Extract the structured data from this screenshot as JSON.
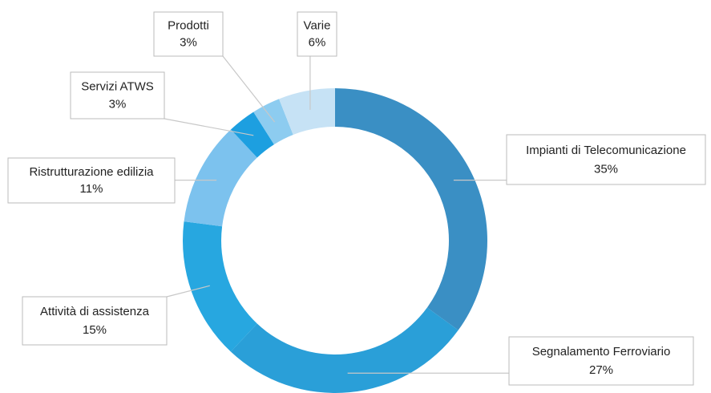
{
  "chart_data": {
    "type": "donut",
    "categories": [
      "Impianti di Telecomunicazione",
      "Segnalamento Ferroviario",
      "Attività di assistenza",
      "Ristrutturazione edilizia",
      "Servizi ATWS",
      "Prodotti",
      "Varie"
    ],
    "values": [
      35,
      27,
      15,
      11,
      3,
      3,
      6
    ],
    "value_labels": [
      "35%",
      "27%",
      "15%",
      "11%",
      "3%",
      "3%",
      "6%"
    ],
    "colors": [
      "#3a8fc4",
      "#2a9fd8",
      "#27a7e0",
      "#7cc2ee",
      "#1d9fe0",
      "#8dccf0",
      "#c6e2f5"
    ]
  }
}
